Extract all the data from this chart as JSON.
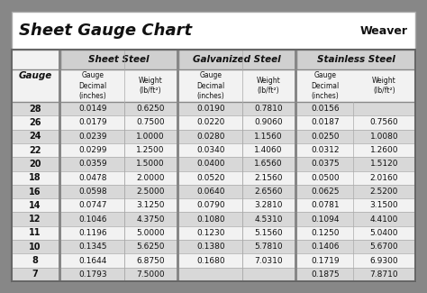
{
  "title": "Sheet Gauge Chart",
  "gauges": [
    28,
    26,
    24,
    22,
    20,
    18,
    16,
    14,
    12,
    11,
    10,
    8,
    7
  ],
  "sheet_steel": {
    "label": "Sheet Steel",
    "decimal": [
      "0.0149",
      "0.0179",
      "0.0239",
      "0.0299",
      "0.0359",
      "0.0478",
      "0.0598",
      "0.0747",
      "0.1046",
      "0.1196",
      "0.1345",
      "0.1644",
      "0.1793"
    ],
    "weight": [
      "0.6250",
      "0.7500",
      "1.0000",
      "1.2500",
      "1.5000",
      "2.0000",
      "2.5000",
      "3.1250",
      "4.3750",
      "5.0000",
      "5.6250",
      "6.8750",
      "7.5000"
    ]
  },
  "galvanized_steel": {
    "label": "Galvanized Steel",
    "decimal": [
      "0.0190",
      "0.0220",
      "0.0280",
      "0.0340",
      "0.0400",
      "0.0520",
      "0.0640",
      "0.0790",
      "0.1080",
      "0.1230",
      "0.1380",
      "0.1680",
      ""
    ],
    "weight": [
      "0.7810",
      "0.9060",
      "1.1560",
      "1.4060",
      "1.6560",
      "2.1560",
      "2.6560",
      "3.2810",
      "4.5310",
      "5.1560",
      "5.7810",
      "7.0310",
      ""
    ]
  },
  "stainless_steel": {
    "label": "Stainless Steel",
    "decimal": [
      "0.0156",
      "0.0187",
      "0.0250",
      "0.0312",
      "0.0375",
      "0.0500",
      "0.0625",
      "0.0781",
      "0.1094",
      "0.1250",
      "0.1406",
      "0.1719",
      "0.1875"
    ],
    "weight": [
      "",
      "0.7560",
      "1.0080",
      "1.2600",
      "1.5120",
      "2.0160",
      "2.5200",
      "3.1500",
      "4.4100",
      "5.0400",
      "5.6700",
      "6.9300",
      "7.8710"
    ]
  },
  "bg_outer": "#878787",
  "bg_white": "#ffffff",
  "header_bg": "#d0d0d0",
  "row_dark": "#d8d8d8",
  "row_light": "#f2f2f2",
  "divider_thick": "#555555",
  "divider_thin": "#aaaaaa",
  "title_color": "#111111",
  "text_color": "#111111"
}
